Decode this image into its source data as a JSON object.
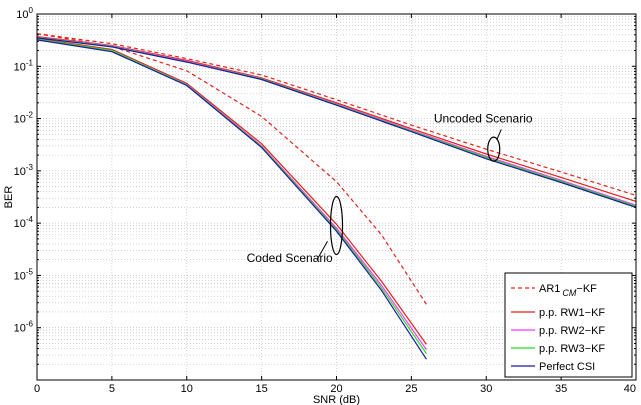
{
  "chart_data": {
    "type": "line",
    "title": "",
    "xlabel": "SNR (dB)",
    "ylabel": "BER",
    "xlim": [
      0,
      40
    ],
    "ylim_log10": [
      -7,
      0
    ],
    "y_scale": "log",
    "grid": true,
    "x_ticks": [
      0,
      5,
      10,
      15,
      20,
      25,
      30,
      35,
      40
    ],
    "y_ticks": [
      {
        "exp": 0,
        "base": "10",
        "sup": "0"
      },
      {
        "exp": -1,
        "base": "10",
        "sup": "-1"
      },
      {
        "exp": -2,
        "base": "10",
        "sup": "-2"
      },
      {
        "exp": -3,
        "base": "10",
        "sup": "-3"
      },
      {
        "exp": -4,
        "base": "10",
        "sup": "-4"
      },
      {
        "exp": -5,
        "base": "10",
        "sup": "-5"
      },
      {
        "exp": -6,
        "base": "10",
        "sup": "-6"
      }
    ],
    "legend_placement": "bottom-right",
    "series": [
      {
        "name": "AR1_CM-KF",
        "legend_main": "AR1",
        "legend_sub": "CM",
        "legend_tail": "−KF",
        "color": "#e8221b",
        "dash": true,
        "groups": [
          {
            "x": [
              0,
              5,
              10,
              15,
              20,
              23,
              26
            ],
            "y": [
              0.42,
              0.24,
              0.082,
              0.011,
              0.00062,
              6e-05,
              2.8e-06
            ]
          },
          {
            "x": [
              0,
              5,
              10,
              15,
              20,
              25,
              30,
              35,
              40
            ],
            "y": [
              0.42,
              0.27,
              0.14,
              0.068,
              0.023,
              0.0075,
              0.0026,
              0.00095,
              0.00034
            ]
          }
        ]
      },
      {
        "name": "p.p. RW1−KF",
        "color": "#e8221b",
        "dash": false,
        "groups": [
          {
            "x": [
              0,
              5,
              10,
              15,
              20,
              23,
              26
            ],
            "y": [
              0.34,
              0.21,
              0.047,
              0.0033,
              9.5e-05,
              7.8e-06,
              4.8e-07
            ]
          },
          {
            "x": [
              0,
              5,
              10,
              15,
              20,
              25,
              30,
              35,
              40
            ],
            "y": [
              0.37,
              0.25,
              0.13,
              0.06,
              0.02,
              0.0064,
              0.0021,
              0.00075,
              0.00026
            ]
          }
        ]
      },
      {
        "name": "p.p. RW2−KF",
        "color": "#ff33ff",
        "dash": false,
        "groups": [
          {
            "x": [
              0,
              5,
              10,
              15,
              20,
              23,
              26
            ],
            "y": [
              0.33,
              0.2,
              0.045,
              0.003,
              8e-05,
              6.5e-06,
              3.8e-07
            ]
          },
          {
            "x": [
              0,
              5,
              10,
              15,
              20,
              25,
              30,
              35,
              40
            ],
            "y": [
              0.36,
              0.245,
              0.125,
              0.058,
              0.019,
              0.006,
              0.0019,
              0.00066,
              0.00022
            ]
          }
        ]
      },
      {
        "name": "p.p. RW3−KF",
        "color": "#22dd22",
        "dash": false,
        "groups": [
          {
            "x": [
              0,
              5,
              10,
              15,
              20,
              23,
              26
            ],
            "y": [
              0.33,
              0.2,
              0.044,
              0.0029,
              7.5e-05,
              5.8e-06,
              3.2e-07
            ]
          },
          {
            "x": [
              0,
              5,
              10,
              15,
              20,
              25,
              30,
              35,
              40
            ],
            "y": [
              0.355,
              0.24,
              0.122,
              0.057,
              0.0185,
              0.0058,
              0.0018,
              0.00063,
              0.00021
            ]
          }
        ]
      },
      {
        "name": "Perfect CSI",
        "color": "#1a1aa8",
        "dash": false,
        "groups": [
          {
            "x": [
              0,
              5,
              10,
              15,
              20,
              23,
              26
            ],
            "y": [
              0.32,
              0.19,
              0.043,
              0.0028,
              7e-05,
              5.2e-06,
              2.5e-07
            ]
          },
          {
            "x": [
              0,
              5,
              10,
              15,
              20,
              25,
              30,
              35,
              40
            ],
            "y": [
              0.35,
              0.235,
              0.12,
              0.056,
              0.018,
              0.0056,
              0.0017,
              0.0006,
              0.0002
            ]
          }
        ]
      }
    ],
    "annotations": [
      {
        "text": "Uncoded Scenario",
        "x": 26.5,
        "y": 0.0085
      },
      {
        "text": "Coded Scenario",
        "x": 14,
        "y": 1.8e-05
      }
    ],
    "ellipses": [
      {
        "cx": 30.5,
        "cy": 0.0026
      },
      {
        "cx": 20,
        "cy": 9e-05
      }
    ],
    "pointers": [
      {
        "x1": 31,
        "y1": 0.0062,
        "x2": 30.7,
        "y2": 0.0039
      },
      {
        "x1": 18.7,
        "y1": 2e-05,
        "x2": 19.4,
        "y2": 4.5e-05
      }
    ]
  }
}
